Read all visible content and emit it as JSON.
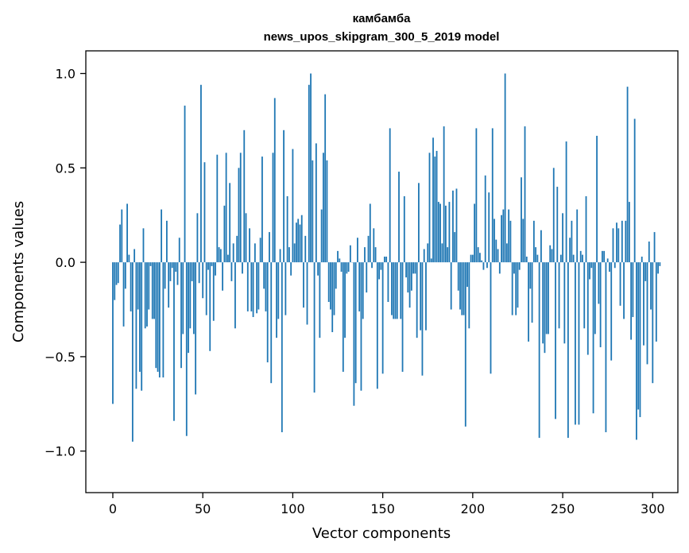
{
  "chart_data": {
    "type": "bar",
    "title": [
      "камбамба",
      "news_upos_skipgram_300_5_2019 model"
    ],
    "xlabel": "Vector components",
    "ylabel": "Components values",
    "xlim": [
      -15,
      314
    ],
    "ylim": [
      -1.22,
      1.12
    ],
    "grid": false,
    "legend": "none",
    "bar_color": "#1f77b4",
    "x_ticks": [
      {
        "value": 0,
        "label": "0"
      },
      {
        "value": 50,
        "label": "50"
      },
      {
        "value": 100,
        "label": "100"
      },
      {
        "value": 150,
        "label": "150"
      },
      {
        "value": 200,
        "label": "200"
      },
      {
        "value": 250,
        "label": "250"
      },
      {
        "value": 300,
        "label": "300"
      }
    ],
    "y_ticks": [
      {
        "value": -1.0,
        "label": "−1.0"
      },
      {
        "value": -0.5,
        "label": "−0.5"
      },
      {
        "value": 0.0,
        "label": "0.0"
      },
      {
        "value": 0.5,
        "label": "0.5"
      },
      {
        "value": 1.0,
        "label": "1.0"
      }
    ],
    "values": [
      -0.75,
      -0.2,
      -0.12,
      -0.11,
      0.2,
      0.28,
      -0.34,
      -0.14,
      0.31,
      0.04,
      -0.26,
      -0.95,
      0.07,
      -0.67,
      -0.25,
      -0.58,
      -0.68,
      0.18,
      -0.35,
      -0.34,
      -0.25,
      -0.02,
      -0.3,
      -0.3,
      -0.56,
      -0.58,
      -0.61,
      0.28,
      -0.61,
      -0.14,
      0.22,
      -0.24,
      -0.1,
      -0.03,
      -0.84,
      -0.05,
      -0.12,
      0.13,
      -0.56,
      -0.38,
      0.83,
      -0.92,
      -0.48,
      -0.35,
      -0.1,
      -0.38,
      -0.7,
      0.26,
      -0.11,
      0.94,
      -0.19,
      0.53,
      -0.28,
      -0.04,
      -0.47,
      -0.02,
      -0.31,
      -0.07,
      0.57,
      0.08,
      0.07,
      -0.15,
      0.3,
      0.58,
      0.04,
      0.42,
      -0.1,
      0.1,
      -0.35,
      0.14,
      0.5,
      0.58,
      -0.06,
      0.7,
      0.26,
      -0.26,
      0.18,
      -0.26,
      -0.29,
      0.1,
      -0.27,
      -0.25,
      0.13,
      0.56,
      -0.14,
      -0.26,
      -0.53,
      0.16,
      -0.64,
      0.58,
      0.87,
      -0.4,
      -0.3,
      0.07,
      -0.9,
      0.7,
      -0.28,
      0.35,
      0.08,
      -0.07,
      0.6,
      0.1,
      0.21,
      0.23,
      0.2,
      0.25,
      -0.24,
      0.14,
      -0.33,
      0.94,
      1.0,
      0.54,
      -0.69,
      0.63,
      -0.07,
      -0.4,
      0.28,
      0.58,
      0.89,
      0.54,
      -0.21,
      -0.25,
      -0.37,
      -0.28,
      -0.14,
      0.06,
      0.02,
      -0.05,
      -0.58,
      -0.4,
      -0.06,
      -0.05,
      0.09,
      0.0,
      -0.76,
      -0.64,
      0.13,
      -0.26,
      -0.68,
      -0.3,
      0.08,
      -0.16,
      0.14,
      0.31,
      -0.03,
      0.18,
      0.08,
      -0.67,
      -0.09,
      -0.04,
      -0.59,
      0.03,
      0.03,
      -0.21,
      0.71,
      -0.28,
      -0.3,
      -0.3,
      -0.3,
      0.48,
      -0.3,
      -0.58,
      0.35,
      -0.08,
      -0.16,
      -0.24,
      -0.15,
      -0.06,
      -0.06,
      -0.4,
      0.42,
      -0.36,
      -0.6,
      0.07,
      -0.36,
      0.1,
      0.58,
      0.02,
      0.66,
      0.56,
      0.59,
      0.32,
      0.31,
      0.1,
      0.72,
      0.3,
      0.08,
      0.32,
      -0.25,
      0.38,
      0.16,
      0.39,
      -0.15,
      -0.25,
      -0.28,
      -0.28,
      -0.87,
      -0.13,
      -0.35,
      0.04,
      0.04,
      0.31,
      0.71,
      0.08,
      0.05,
      0.01,
      -0.04,
      0.46,
      -0.03,
      0.37,
      -0.59,
      0.71,
      0.23,
      0.12,
      0.07,
      -0.06,
      0.25,
      0.28,
      1.0,
      0.1,
      0.28,
      0.22,
      -0.28,
      -0.06,
      -0.28,
      -0.24,
      -0.04,
      0.45,
      0.23,
      0.72,
      0.03,
      -0.42,
      -0.14,
      -0.32,
      0.22,
      0.08,
      0.04,
      -0.93,
      0.17,
      -0.43,
      -0.48,
      -0.38,
      -0.38,
      0.09,
      0.07,
      0.5,
      -0.83,
      0.4,
      -0.35,
      0.04,
      0.26,
      -0.43,
      0.64,
      -0.93,
      0.13,
      0.22,
      0.04,
      -0.86,
      0.28,
      -0.86,
      0.06,
      0.04,
      -0.35,
      0.35,
      -0.49,
      -0.09,
      -0.03,
      -0.8,
      -0.38,
      0.67,
      -0.22,
      -0.45,
      0.06,
      0.06,
      -0.9,
      0.02,
      -0.05,
      -0.52,
      0.18,
      -0.03,
      0.21,
      0.18,
      -0.23,
      0.22,
      -0.3,
      0.22,
      0.93,
      0.32,
      -0.41,
      -0.29,
      0.76,
      -0.94,
      -0.78,
      -0.82,
      0.03,
      -0.44,
      -0.1,
      -0.54,
      0.11,
      -0.25,
      -0.64,
      0.16,
      -0.42,
      -0.06,
      -0.02
    ]
  }
}
